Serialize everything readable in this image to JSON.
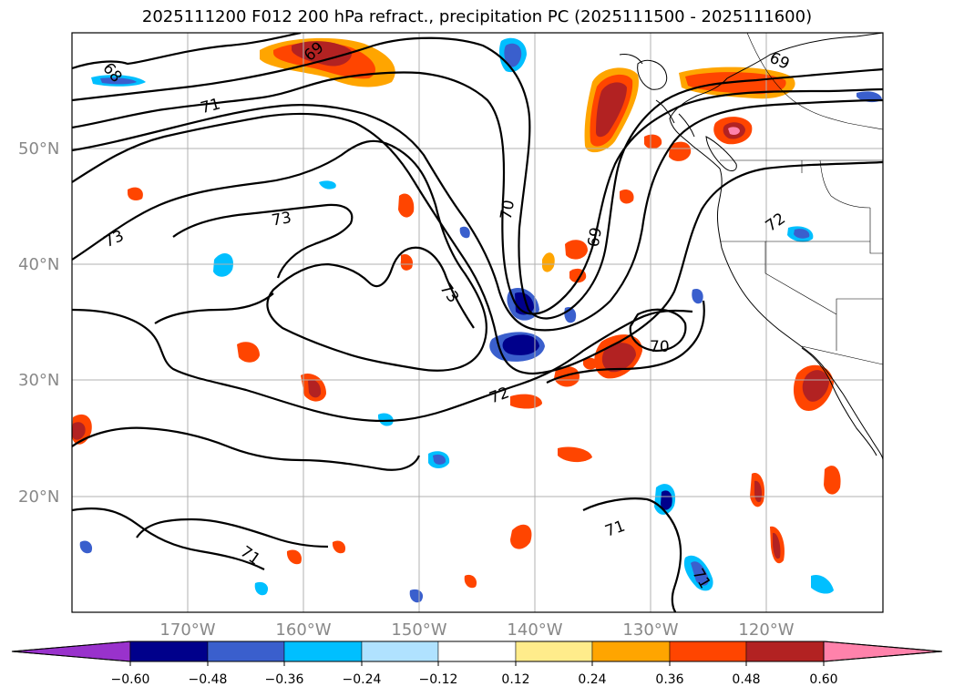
{
  "title": "2025111200 F012 200 hPa refract., precipitation PC (2025111500 - 2025111600)",
  "latitude_labels": [
    "50°N",
    "40°N",
    "30°N",
    "20°N"
  ],
  "longitude_labels": [
    "170°W",
    "160°W",
    "150°W",
    "140°W",
    "130°W",
    "120°W"
  ],
  "contour_labels": [
    "68",
    "69",
    "70",
    "71",
    "72",
    "73"
  ],
  "colorbar": {
    "ticks": [
      "−0.60",
      "−0.48",
      "−0.36",
      "−0.24",
      "−0.12",
      "0.12",
      "0.24",
      "0.36",
      "0.48",
      "0.60"
    ],
    "colors": [
      "#9932cc",
      "#00008b",
      "#3a5fcd",
      "#00bfff",
      "#b0e2ff",
      "#ffffff",
      "#ffec8b",
      "#ffa500",
      "#ff4500",
      "#b22222",
      "#ff82ab"
    ]
  },
  "colors": {
    "contour": "#000000",
    "grid": "#b0b0b0",
    "coast": "#000000"
  }
}
